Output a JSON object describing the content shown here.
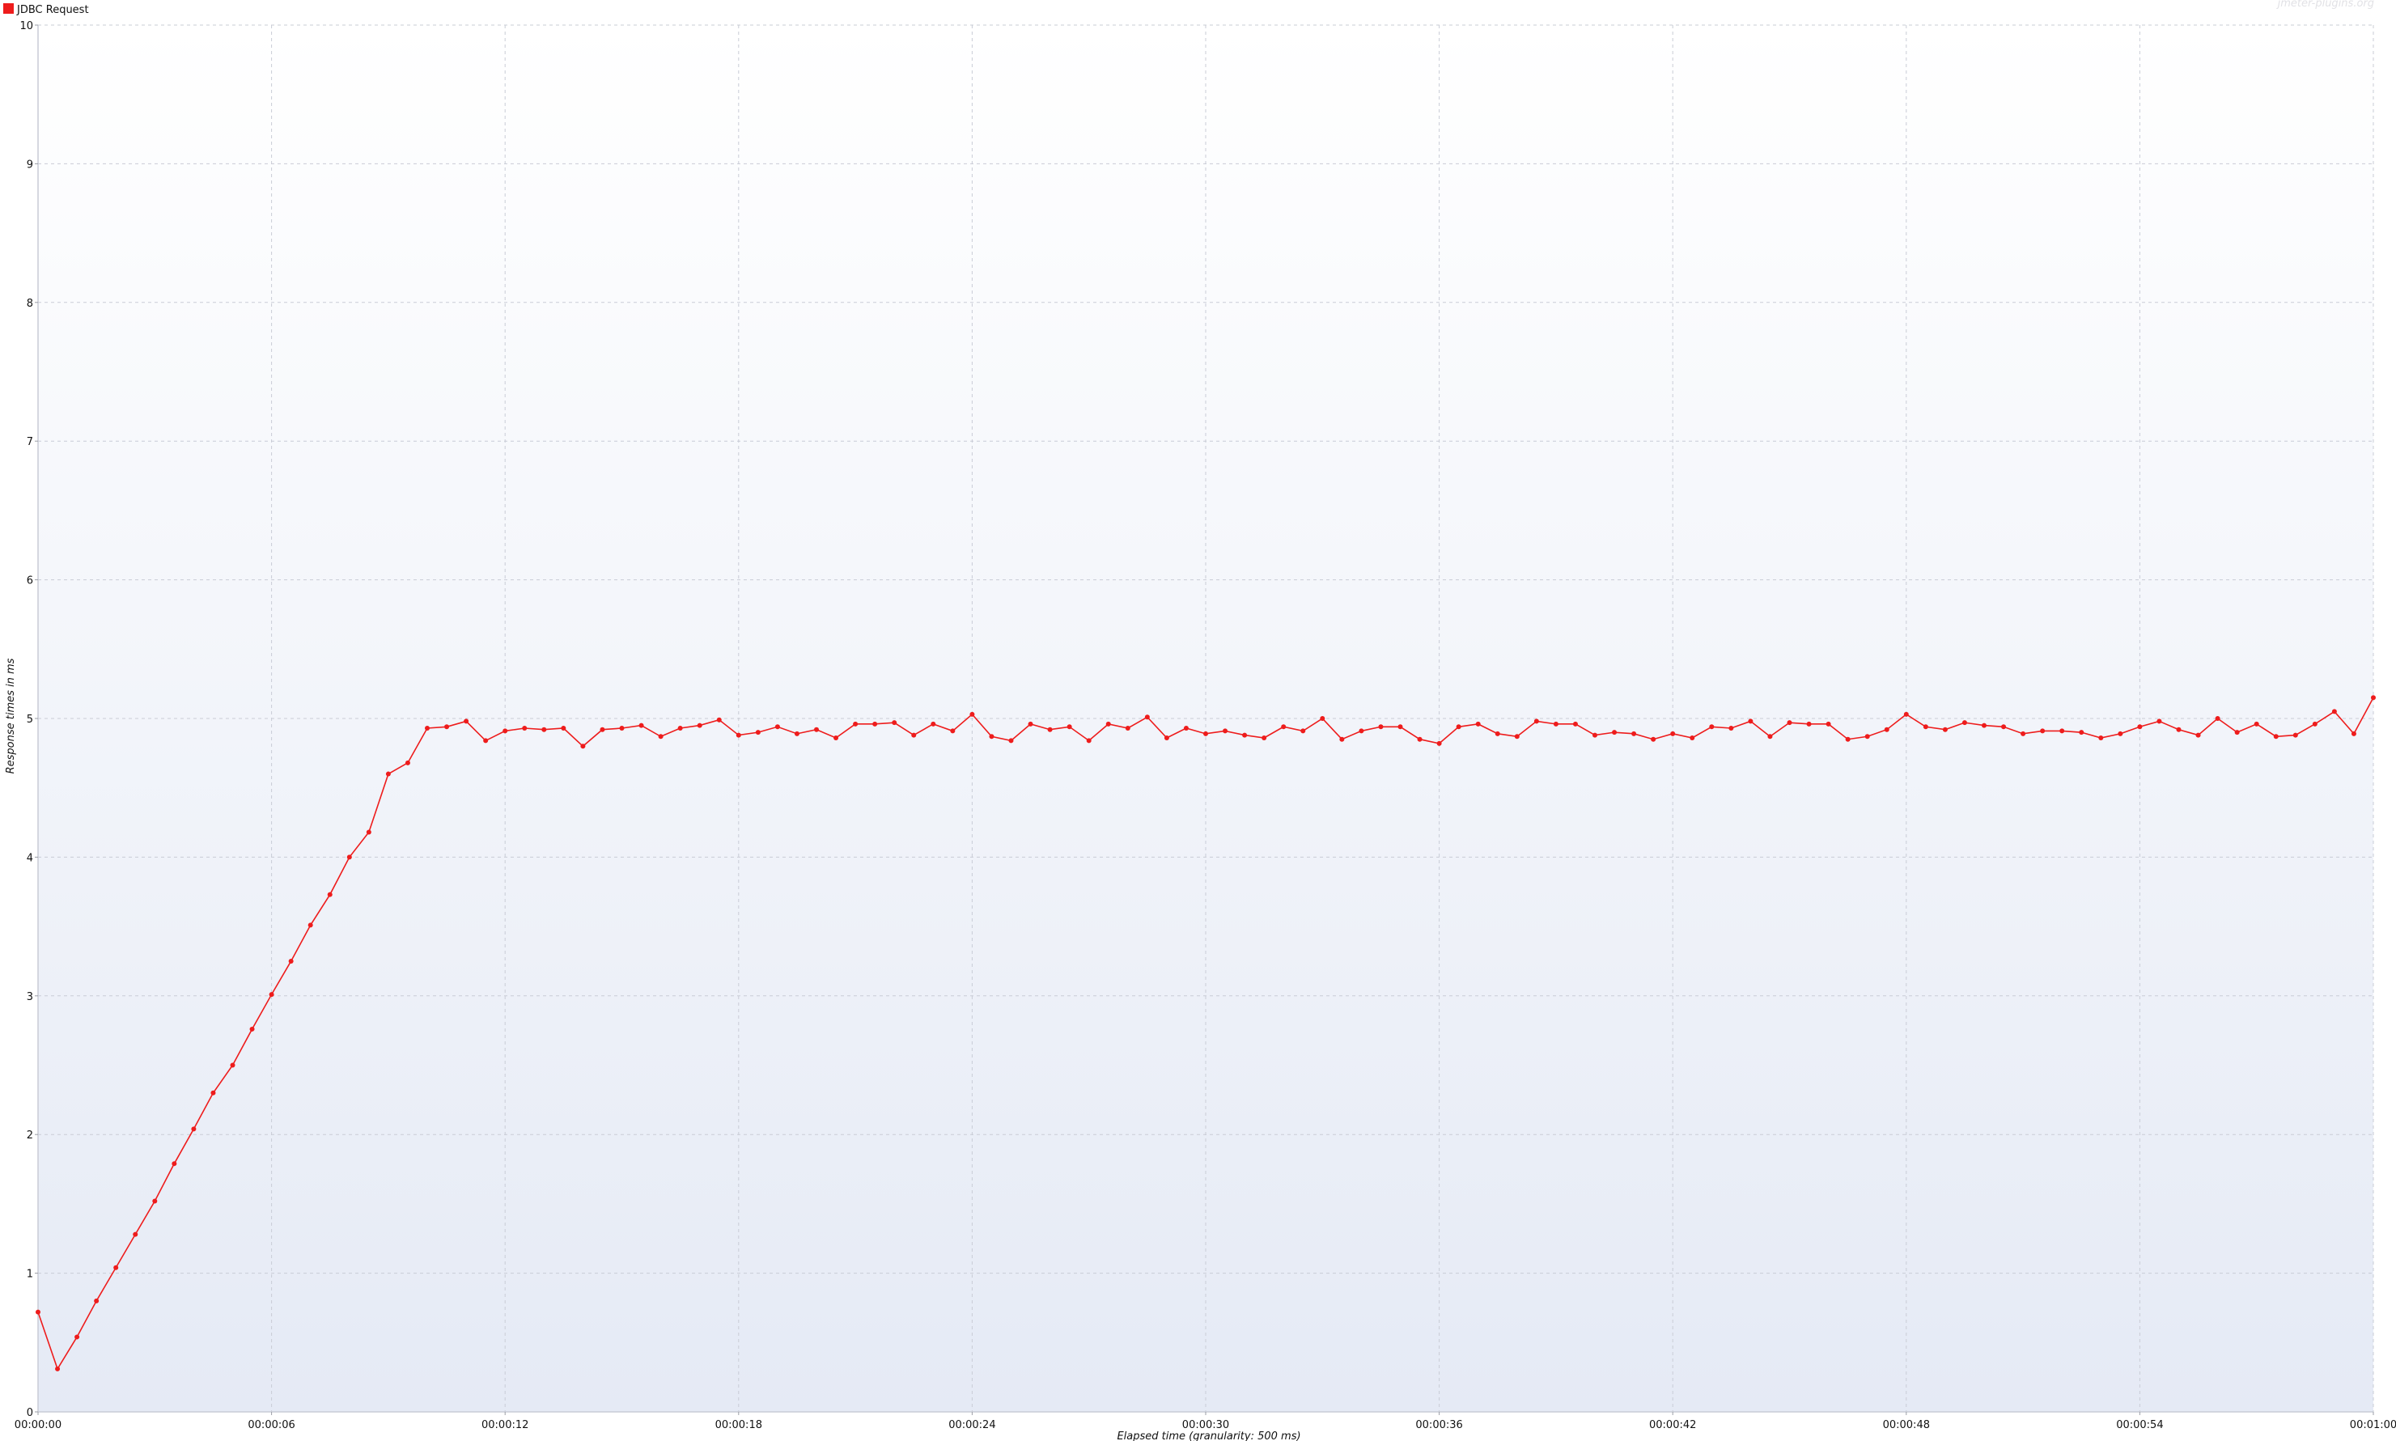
{
  "chart_data": {
    "type": "line",
    "xlabel": "Elapsed time (granularity: 500 ms)",
    "ylabel": "Response times in ms",
    "watermark": "jmeter-plugins.org",
    "xlim_ms": [
      0,
      60000
    ],
    "ylim": [
      0,
      10
    ],
    "x_ticks": [
      "00:00:00",
      "00:00:06",
      "00:00:12",
      "00:00:18",
      "00:00:24",
      "00:00:30",
      "00:00:36",
      "00:00:42",
      "00:00:48",
      "00:00:54",
      "00:01:00"
    ],
    "y_ticks": [
      "0",
      "1",
      "2",
      "3",
      "4",
      "5",
      "6",
      "7",
      "8",
      "9",
      "10"
    ],
    "grid": true,
    "legend_position": "top-left",
    "colors": {
      "series": "#ee1c1c",
      "grid": "#c9ccd6",
      "background_top": "#ffffff",
      "background_bottom": "#e5eaf5"
    },
    "series": [
      {
        "name": "JDBC Request",
        "x_ms": [
          0,
          500,
          1000,
          1500,
          2000,
          2500,
          3000,
          3500,
          4000,
          4500,
          5000,
          5500,
          6000,
          6500,
          7000,
          7500,
          8000,
          8500,
          9000,
          9500,
          10000,
          10500,
          11000,
          11500,
          12000,
          12500,
          13000,
          13500,
          14000,
          14500,
          15000,
          15500,
          16000,
          16500,
          17000,
          17500,
          18000,
          18500,
          19000,
          19500,
          20000,
          20500,
          21000,
          21500,
          22000,
          22500,
          23000,
          23500,
          24000,
          24500,
          25000,
          25500,
          26000,
          26500,
          27000,
          27500,
          28000,
          28500,
          29000,
          29500,
          30000,
          30500,
          31000,
          31500,
          32000,
          32500,
          33000,
          33500,
          34000,
          34500,
          35000,
          35500,
          36000,
          36500,
          37000,
          37500,
          38000,
          38500,
          39000,
          39500,
          40000,
          40500,
          41000,
          41500,
          42000,
          42500,
          43000,
          43500,
          44000,
          44500,
          45000,
          45500,
          46000,
          46500,
          47000,
          47500,
          48000,
          48500,
          49000,
          49500,
          50000,
          50500,
          51000,
          51500,
          52000,
          52500,
          53000,
          53500,
          54000,
          54500,
          55000,
          55500,
          56000,
          56500,
          57000,
          57500,
          58000,
          58500,
          59000,
          59500,
          60000
        ],
        "values": [
          0.72,
          0.31,
          0.54,
          0.8,
          1.04,
          1.28,
          1.52,
          1.79,
          2.04,
          2.3,
          2.5,
          2.76,
          3.01,
          3.25,
          3.51,
          3.73,
          4.0,
          4.18,
          4.6,
          4.68,
          4.93,
          4.94,
          4.98,
          4.84,
          4.91,
          4.93,
          4.92,
          4.93,
          4.8,
          4.92,
          4.93,
          4.95,
          4.87,
          4.93,
          4.95,
          4.99,
          4.88,
          4.9,
          4.94,
          4.89,
          4.92,
          4.86,
          4.96,
          4.96,
          4.97,
          4.88,
          4.96,
          4.91,
          5.03,
          4.87,
          4.84,
          4.96,
          4.92,
          4.94,
          4.84,
          4.96,
          4.93,
          5.01,
          4.86,
          4.93,
          4.89,
          4.91,
          4.88,
          4.86,
          4.94,
          4.91,
          5.0,
          4.85,
          4.91,
          4.94,
          4.94,
          4.85,
          4.82,
          4.94,
          4.96,
          4.89,
          4.87,
          4.98,
          4.96,
          4.96,
          4.88,
          4.9,
          4.89,
          4.85,
          4.89,
          4.86,
          4.94,
          4.93,
          4.98,
          4.87,
          4.97,
          4.96,
          4.96,
          4.85,
          4.87,
          4.92,
          5.03,
          4.94,
          4.92,
          4.97,
          4.95,
          4.94,
          4.89,
          4.91,
          4.91,
          4.9,
          4.86,
          4.89,
          4.94,
          4.98,
          4.92,
          4.88,
          5.0,
          4.9,
          4.96,
          4.87,
          4.88,
          4.96,
          5.05,
          4.89,
          5.15
        ]
      }
    ]
  }
}
